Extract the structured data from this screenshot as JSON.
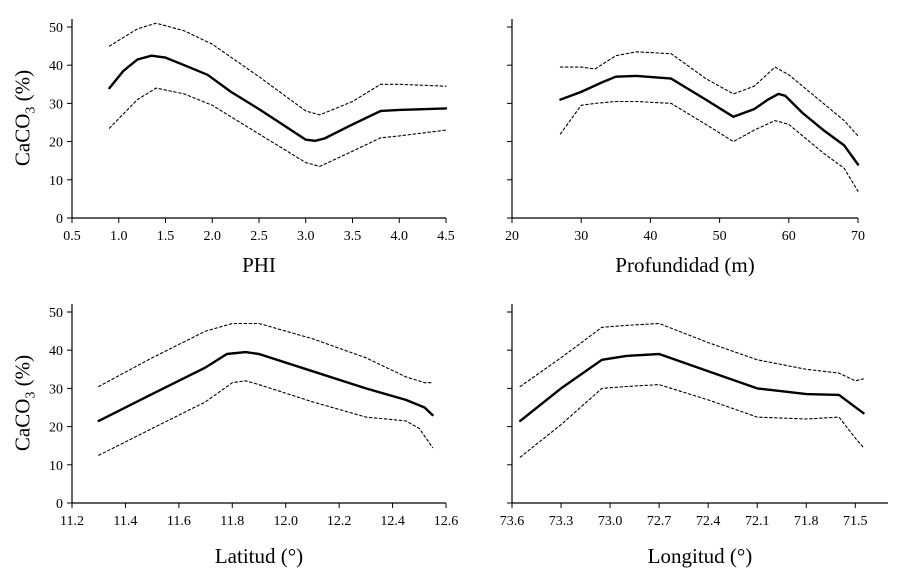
{
  "figure": {
    "background": "#ffffff",
    "line_color": "#000000"
  },
  "chart_data": [
    {
      "type": "line",
      "xlabel": "PHI",
      "ylabel": "CaCO",
      "ylabel_sub": "3",
      "ylabel_unit": "(%)",
      "xlim": [
        0.5,
        4.5
      ],
      "ylim": [
        0,
        55
      ],
      "x_ticks": [
        0.5,
        1.0,
        1.5,
        2.0,
        2.5,
        3.0,
        3.5,
        4.0,
        4.5
      ],
      "x_tick_labels": [
        "0.5",
        "1.0",
        "1.5",
        "2.0",
        "2.5",
        "3.0",
        "3.5",
        "4.0",
        "4.5"
      ],
      "y_ticks": [
        0,
        10,
        20,
        30,
        40,
        50
      ],
      "y_tick_labels": [
        "0",
        "10",
        "20",
        "30",
        "40",
        "50"
      ],
      "grid": false,
      "series": [
        {
          "style": "solid",
          "x": [
            0.9,
            1.05,
            1.2,
            1.35,
            1.5,
            1.7,
            1.95,
            2.2,
            2.5,
            2.75,
            3.0,
            3.1,
            3.2,
            3.5,
            3.8,
            4.0,
            4.5
          ],
          "y": [
            34,
            38.5,
            41.5,
            42.5,
            42,
            40,
            37.5,
            33,
            28.5,
            24.5,
            20.5,
            20.2,
            20.8,
            24.5,
            28,
            28.3,
            28.7
          ]
        },
        {
          "style": "dotted",
          "x": [
            0.9,
            1.2,
            1.4,
            1.7,
            2.0,
            2.5,
            3.0,
            3.15,
            3.5,
            3.8,
            4.0,
            4.5
          ],
          "y": [
            45,
            49.5,
            51,
            49,
            45.5,
            37,
            28,
            27,
            30.5,
            35,
            35,
            34.5
          ]
        },
        {
          "style": "dotted",
          "x": [
            0.9,
            1.2,
            1.4,
            1.7,
            2.0,
            2.5,
            3.0,
            3.15,
            3.5,
            3.8,
            4.0,
            4.5
          ],
          "y": [
            23.5,
            31,
            34,
            32.5,
            29.5,
            22,
            14.5,
            13.5,
            17.5,
            21,
            21.5,
            23
          ]
        }
      ]
    },
    {
      "type": "line",
      "xlabel": "Profundidad (m)",
      "ylabel": "",
      "xlim": [
        20,
        70
      ],
      "ylim": [
        0,
        55
      ],
      "x_ticks": [
        20,
        30,
        40,
        50,
        60,
        70
      ],
      "x_tick_labels": [
        "20",
        "30",
        "40",
        "50",
        "60",
        "70"
      ],
      "y_ticks": [
        0,
        10,
        20,
        30,
        40,
        50
      ],
      "y_tick_labels": [
        "",
        "",
        "",
        "",
        "",
        ""
      ],
      "grid": false,
      "series": [
        {
          "style": "solid",
          "x": [
            27,
            30,
            33,
            35,
            38,
            43,
            48,
            52,
            55,
            57,
            58.5,
            59.5,
            62,
            65,
            68,
            70
          ],
          "y": [
            31,
            33,
            35.5,
            37,
            37.2,
            36.5,
            31,
            26.5,
            28.5,
            31,
            32.5,
            32,
            27.5,
            23,
            19,
            14
          ]
        },
        {
          "style": "dotted",
          "x": [
            27,
            30,
            32,
            35,
            38,
            43,
            48,
            52,
            55,
            58,
            60,
            65,
            68,
            70
          ],
          "y": [
            39.5,
            39.5,
            39,
            42.5,
            43.5,
            43,
            36.5,
            32.5,
            34.5,
            39.5,
            37.5,
            30,
            25.5,
            21.5
          ]
        },
        {
          "style": "dotted",
          "x": [
            27,
            30,
            32,
            35,
            38,
            43,
            48,
            52,
            55,
            58,
            60,
            65,
            68,
            70
          ],
          "y": [
            22,
            29.5,
            30,
            30.5,
            30.5,
            30,
            24.5,
            20,
            23,
            25.5,
            24.5,
            17,
            13,
            7
          ]
        }
      ]
    },
    {
      "type": "line",
      "xlabel": "Latitud (°)",
      "ylabel": "CaCO",
      "ylabel_sub": "3",
      "ylabel_unit": "(%)",
      "xlim": [
        11.2,
        12.6
      ],
      "ylim": [
        0,
        55
      ],
      "x_ticks": [
        11.2,
        11.4,
        11.6,
        11.8,
        12.0,
        12.2,
        12.4,
        12.6
      ],
      "x_tick_labels": [
        "11.2",
        "11.4",
        "11.6",
        "11.8",
        "12.0",
        "12.2",
        "12.4",
        "12.6"
      ],
      "y_ticks": [
        0,
        10,
        20,
        30,
        40,
        50
      ],
      "y_tick_labels": [
        "0",
        "10",
        "20",
        "30",
        "40",
        "50"
      ],
      "grid": false,
      "series": [
        {
          "style": "solid",
          "x": [
            11.3,
            11.5,
            11.7,
            11.78,
            11.85,
            11.9,
            12.1,
            12.3,
            12.45,
            12.52,
            12.55
          ],
          "y": [
            21.5,
            28.5,
            35.5,
            39,
            39.5,
            39,
            34.5,
            30,
            27,
            25,
            23
          ]
        },
        {
          "style": "dotted",
          "x": [
            11.3,
            11.5,
            11.7,
            11.8,
            11.9,
            12.1,
            12.3,
            12.45,
            12.52,
            12.55
          ],
          "y": [
            30.5,
            38,
            45,
            47,
            47,
            43,
            38,
            33,
            31.5,
            31.5
          ]
        },
        {
          "style": "dotted",
          "x": [
            11.3,
            11.5,
            11.7,
            11.8,
            11.85,
            11.9,
            12.1,
            12.3,
            12.45,
            12.5,
            12.55
          ],
          "y": [
            12.5,
            19.5,
            26.5,
            31.5,
            32,
            31,
            26.5,
            22.5,
            21.5,
            19.5,
            14.5
          ]
        }
      ]
    },
    {
      "type": "line",
      "xlabel": "Longitud (°)",
      "ylabel": "",
      "xlim": [
        73.6,
        71.3
      ],
      "ylim": [
        0,
        55
      ],
      "x_ticks": [
        73.6,
        73.3,
        73.0,
        72.7,
        72.4,
        72.1,
        71.8,
        71.5
      ],
      "x_tick_labels": [
        "73.6",
        "73.3",
        "73.0",
        "72.7",
        "72.4",
        "72.1",
        "71.8",
        "71.5"
      ],
      "y_ticks": [
        0,
        10,
        20,
        30,
        40,
        50
      ],
      "y_tick_labels": [
        "",
        "",
        "",
        "",
        "",
        ""
      ],
      "grid": false,
      "series": [
        {
          "style": "solid",
          "x": [
            73.55,
            73.3,
            73.05,
            72.9,
            72.7,
            72.4,
            72.1,
            71.8,
            71.6,
            71.45
          ],
          "y": [
            21.5,
            30,
            37.5,
            38.5,
            39,
            34.5,
            30,
            28.5,
            28.3,
            23.5
          ]
        },
        {
          "style": "dotted",
          "x": [
            73.55,
            73.3,
            73.05,
            72.9,
            72.7,
            72.4,
            72.1,
            71.8,
            71.6,
            71.5,
            71.45
          ],
          "y": [
            30.5,
            38,
            46,
            46.5,
            47,
            42,
            37.5,
            35,
            34,
            32,
            32.5
          ]
        },
        {
          "style": "dotted",
          "x": [
            73.55,
            73.3,
            73.05,
            72.9,
            72.7,
            72.4,
            72.1,
            71.8,
            71.6,
            71.5,
            71.45
          ],
          "y": [
            12,
            20.5,
            30,
            30.5,
            31,
            27,
            22.5,
            22,
            22.5,
            17,
            14.5
          ]
        }
      ]
    }
  ]
}
